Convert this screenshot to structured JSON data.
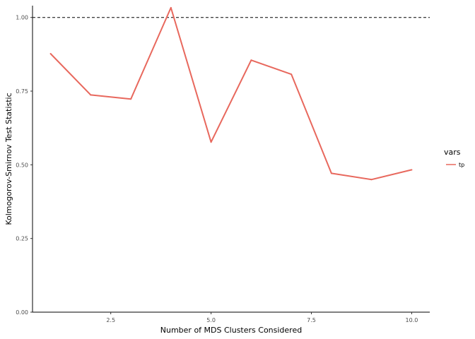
{
  "chart_data": {
    "type": "line",
    "xlabel": "Number of MDS Clusters Considered",
    "ylabel": "Kolmogorov-Smirnov Test Statistic",
    "xlim": [
      0.55,
      10.45
    ],
    "ylim": [
      0.0,
      1.04
    ],
    "x_ticks": [
      2.5,
      5.0,
      7.5,
      10.0
    ],
    "x_tick_labels": [
      "2.5",
      "5.0",
      "7.5",
      "10.0"
    ],
    "y_ticks": [
      0.0,
      0.25,
      0.5,
      0.75,
      1.0
    ],
    "y_tick_labels": [
      "0.00",
      "0.25",
      "0.50",
      "0.75",
      "1.00"
    ],
    "reference_line": {
      "y": 1.0,
      "style": "dashed",
      "color": "#000000"
    },
    "legend": {
      "title": "vars",
      "placement": "right"
    },
    "series": [
      {
        "name": "tp",
        "color": "#E8685D",
        "x": [
          1,
          2,
          3,
          4,
          5,
          6,
          7,
          8,
          9,
          10
        ],
        "y": [
          0.877,
          0.737,
          0.723,
          1.033,
          0.577,
          0.855,
          0.807,
          0.471,
          0.45,
          0.483
        ]
      }
    ],
    "grid": false
  }
}
